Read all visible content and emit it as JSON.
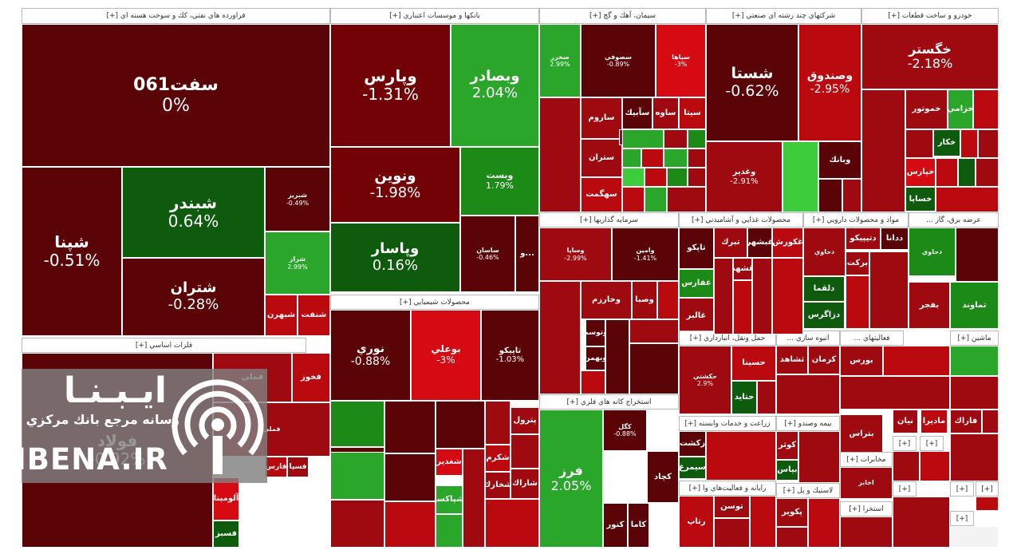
{
  "colors": {
    "deep_red": "#5b0407",
    "dark_red": "#720206",
    "red": "#9e0a10",
    "bright_red": "#d60a12",
    "dark_green": "#0f5b0d",
    "green": "#1b8a16",
    "light_green": "#3ccc3c",
    "header_bg": "#ffffff"
  },
  "sectors": {
    "refinery": "فراورده هاي نفتي، كك و سوخت هسته اي [+]",
    "banks": "بانكها و موسسات اعتباري [+]",
    "cement": "سيمان، آهك و گچ [+]",
    "multi": "شركتهاي چند رشته اي صنعتي [+]",
    "auto": "خودرو و ساخت قطعات [+]",
    "chemicals": "محصولات شيميايي [+]",
    "investment": "سرمايه گذاريها [+]",
    "food": "محصولات غذايي و آشاميدني [+]",
    "pharma": "مواد و محصولات دارويي [+]",
    "utility": "عرضه برق، گاز ...",
    "metals": "فلزات اساسي [+]",
    "mining": "استخراج كانه هاي فلزي [+]",
    "transport": "حمل ونقل، انبارداري [+]",
    "nonmetal": "انبوه سازي ...",
    "services": "فعاليتهاي ...",
    "machinery": "ماشين [+]",
    "agri": "زراعت و خدمات وابسته [+]",
    "insurance": "بيمه وصندو [+]",
    "computer": "رايانه و فعاليت‌هاي وا [+]",
    "plastic": "لاستيك و پل [+]",
    "telecom": "مخابرات [+]",
    "extraction": "استخرا [+]",
    "more": "[+]"
  },
  "tiles": [
    {
      "sym": "سفت061",
      "chg": "0%"
    },
    {
      "sym": "شبندر",
      "chg": "0.64%"
    },
    {
      "sym": "شپنا",
      "chg": "-0.51%"
    },
    {
      "sym": "شتران",
      "chg": "-0.28%"
    },
    {
      "sym": "شبريز",
      "chg": "-0.49%"
    },
    {
      "sym": "شراز",
      "chg": "2.99%"
    },
    {
      "sym": "شبهرن",
      "chg": ""
    },
    {
      "sym": "شنفت",
      "chg": ""
    },
    {
      "sym": "وپارس",
      "chg": "-1.31%"
    },
    {
      "sym": "وبصادر",
      "chg": "2.04%"
    },
    {
      "sym": "ونوين",
      "chg": "-1.98%"
    },
    {
      "sym": "وپاسار",
      "chg": "0.16%"
    },
    {
      "sym": "وبست",
      "chg": "1.79%"
    },
    {
      "sym": "ساسان",
      "chg": "-0.46%"
    },
    {
      "sym": "و...",
      "chg": ""
    },
    {
      "sym": "سخزر",
      "chg": "2.99%"
    },
    {
      "sym": "سصوفي",
      "chg": "-0.89%"
    },
    {
      "sym": "سپاها",
      "chg": "-3%"
    },
    {
      "sym": "ساروم",
      "chg": ""
    },
    {
      "sym": "سآبيك",
      "chg": ""
    },
    {
      "sym": "ساوه",
      "chg": ""
    },
    {
      "sym": "سيتا",
      "chg": ""
    },
    {
      "sym": "ستران",
      "chg": ""
    },
    {
      "sym": "سهگمت",
      "chg": ""
    },
    {
      "sym": "شستا",
      "chg": "-0.62%"
    },
    {
      "sym": "وصندوق",
      "chg": "-2.95%"
    },
    {
      "sym": "وغدير",
      "chg": "-2.91%"
    },
    {
      "sym": "وبانك",
      "chg": ""
    },
    {
      "sym": "خگستر",
      "chg": "-2.18%"
    },
    {
      "sym": "خموتور",
      "chg": ""
    },
    {
      "sym": "خزامي",
      "chg": ""
    },
    {
      "sym": "خكار",
      "chg": ""
    },
    {
      "sym": "خپارس",
      "chg": ""
    },
    {
      "sym": "خساپا",
      "chg": ""
    },
    {
      "sym": "نوري",
      "chg": "-0.88%"
    },
    {
      "sym": "بوعلي",
      "chg": "-3%"
    },
    {
      "sym": "تاپيكو",
      "chg": "-1.03%"
    },
    {
      "sym": "پترول",
      "chg": ""
    },
    {
      "sym": "شغدير",
      "chg": ""
    },
    {
      "sym": "شكرم",
      "chg": ""
    },
    {
      "sym": "شخارك",
      "chg": ""
    },
    {
      "sym": "شپاكسا",
      "chg": ""
    },
    {
      "sym": "شاراك",
      "chg": ""
    },
    {
      "sym": "وساپا",
      "chg": "-2.99%"
    },
    {
      "sym": "وامين",
      "chg": "-1.41%"
    },
    {
      "sym": "وخارزم",
      "chg": ""
    },
    {
      "sym": "وصبا",
      "chg": ""
    },
    {
      "sym": "وتوسم",
      "chg": ""
    },
    {
      "sym": "وبهمن",
      "chg": ""
    },
    {
      "sym": "تاپكو",
      "chg": ""
    },
    {
      "sym": "تبرك",
      "chg": ""
    },
    {
      "sym": "غبشهر",
      "chg": ""
    },
    {
      "sym": "غفارس",
      "chg": ""
    },
    {
      "sym": "غالبر",
      "chg": ""
    },
    {
      "sym": "غكورش",
      "chg": ""
    },
    {
      "sym": "غشهد",
      "chg": ""
    },
    {
      "sym": "دتيپيكو",
      "chg": ""
    },
    {
      "sym": "ددانا",
      "chg": ""
    },
    {
      "sym": "دلقما",
      "chg": ""
    },
    {
      "sym": "دزاگرس",
      "chg": ""
    },
    {
      "sym": "بركت",
      "chg": ""
    },
    {
      "sym": "دحاوي",
      "chg": ""
    },
    {
      "sym": "تماوند",
      "chg": ""
    },
    {
      "sym": "بفجر",
      "chg": ""
    },
    {
      "sym": "فولاد",
      "chg": "-0.92%"
    },
    {
      "sym": "فملي",
      "chg": ""
    },
    {
      "sym": "فخوز",
      "chg": ""
    },
    {
      "sym": "فارس",
      "chg": ""
    },
    {
      "sym": "فسپا",
      "chg": ""
    },
    {
      "sym": "آلومينا",
      "chg": ""
    },
    {
      "sym": "فسبز",
      "chg": ""
    },
    {
      "sym": "فرز",
      "chg": "2.05%"
    },
    {
      "sym": "كچاد",
      "chg": ""
    },
    {
      "sym": "كاما",
      "chg": ""
    },
    {
      "sym": "كنور",
      "chg": ""
    },
    {
      "sym": "كگل",
      "chg": "-0.88%"
    },
    {
      "sym": "حسينا",
      "chg": ""
    },
    {
      "sym": "حتايد",
      "chg": ""
    },
    {
      "sym": "حكشتي",
      "chg": "2.9%"
    },
    {
      "sym": "كرمان",
      "chg": ""
    },
    {
      "sym": "ثشاهد",
      "chg": ""
    },
    {
      "sym": "بورس",
      "chg": ""
    },
    {
      "sym": "بتراس",
      "chg": ""
    },
    {
      "sym": "نيان",
      "chg": ""
    },
    {
      "sym": "ماديرا",
      "chg": ""
    },
    {
      "sym": "فاراك",
      "chg": ""
    },
    {
      "sym": "زكشت",
      "chg": ""
    },
    {
      "sym": "سيمرغ",
      "chg": ""
    },
    {
      "sym": "كوثر",
      "chg": ""
    },
    {
      "sym": "بپاس",
      "chg": ""
    },
    {
      "sym": "توسن",
      "chg": ""
    },
    {
      "sym": "رتاپ",
      "chg": ""
    },
    {
      "sym": "پكوير",
      "chg": ""
    },
    {
      "sym": "اخابر",
      "chg": ""
    }
  ],
  "logo": {
    "title": "ايـبـنـا",
    "subtitle": "رسانه مرجع بانك مركزي",
    "url": "IBENA.IR"
  }
}
